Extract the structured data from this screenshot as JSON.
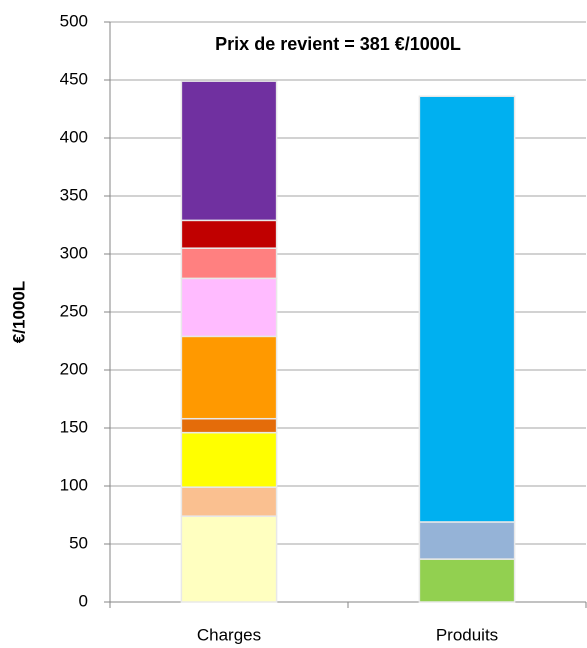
{
  "chart_data": {
    "type": "stacked_bar",
    "title": "Prix de revient = 381 €/1000L",
    "y_label": "€/1000L",
    "categories": [
      "Charges",
      "Produits"
    ],
    "series": [
      {
        "color": "#ffffc0",
        "values": [
          74,
          null
        ]
      },
      {
        "color": "#fac090",
        "values": [
          25,
          null
        ]
      },
      {
        "color": "#ffff00",
        "values": [
          47,
          null
        ]
      },
      {
        "color": "#e46c0a",
        "values": [
          12,
          null
        ]
      },
      {
        "color": "#ff9900",
        "values": [
          71,
          null
        ]
      },
      {
        "color": "#ffbbff",
        "values": [
          50,
          null
        ]
      },
      {
        "color": "#ff8080",
        "values": [
          26,
          null
        ]
      },
      {
        "color": "#c00000",
        "values": [
          24,
          null
        ]
      },
      {
        "color": "#7030a0",
        "values": [
          120,
          null
        ]
      },
      {
        "color": "#92d050",
        "values": [
          null,
          37
        ]
      },
      {
        "color": "#95b3d7",
        "values": [
          null,
          32
        ]
      },
      {
        "color": "#00b0f0",
        "values": [
          null,
          367
        ]
      }
    ],
    "ylim": [
      0,
      500
    ],
    "yticks": [
      0,
      50,
      100,
      150,
      200,
      250,
      300,
      350,
      400,
      450,
      500
    ],
    "grid": true
  }
}
